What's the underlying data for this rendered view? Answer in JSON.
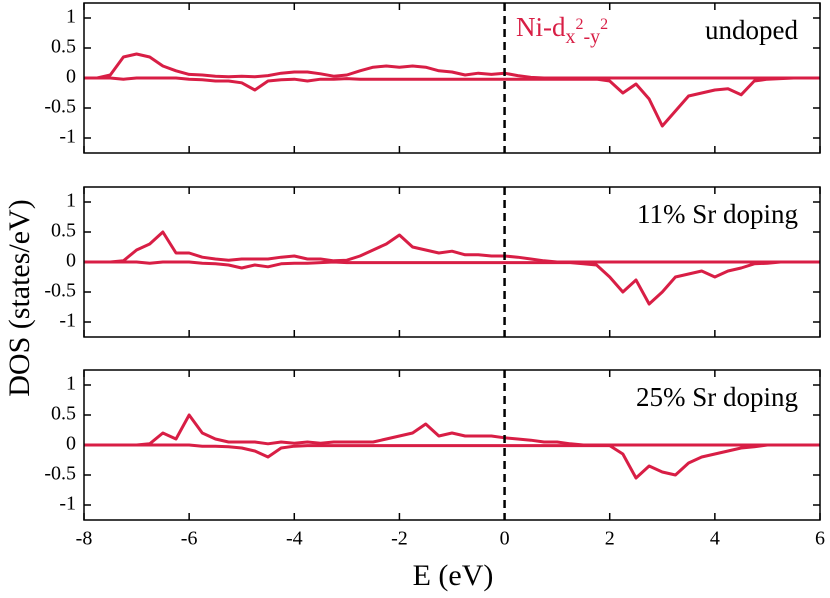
{
  "chart_data": [
    {
      "type": "line",
      "label": "undoped",
      "annotation": {
        "text": "Ni-d",
        "sub1": "x",
        "sup1": "2",
        "sub2": "-y",
        "sup2": "2"
      },
      "x": [
        -8,
        -7.75,
        -7.5,
        -7.25,
        -7,
        -6.75,
        -6.5,
        -6.25,
        -6,
        -5.75,
        -5.5,
        -5.25,
        -5,
        -4.75,
        -4.5,
        -4.25,
        -4,
        -3.75,
        -3.5,
        -3.25,
        -3,
        -2.75,
        -2.5,
        -2.25,
        -2,
        -1.75,
        -1.5,
        -1.25,
        -1,
        -0.75,
        -0.5,
        -0.25,
        0,
        0.25,
        0.5,
        0.75,
        1,
        1.25,
        1.5,
        1.75,
        2,
        2.25,
        2.5,
        2.75,
        3,
        3.25,
        3.5,
        3.75,
        4,
        4.25,
        4.5,
        4.75,
        5,
        5.25,
        5.5,
        5.75,
        6
      ],
      "series": [
        {
          "color": "#d81e45",
          "values": [
            0,
            0,
            0.05,
            0.35,
            0.4,
            0.35,
            0.2,
            0.12,
            0.06,
            0.05,
            0.03,
            0.02,
            0.03,
            0.02,
            0.04,
            0.08,
            0.1,
            0.1,
            0.07,
            0.03,
            0.05,
            0.12,
            0.18,
            0.2,
            0.18,
            0.2,
            0.18,
            0.12,
            0.1,
            0.05,
            0.08,
            0.06,
            0.08,
            0.04,
            0.01,
            0,
            0,
            0,
            0,
            0,
            0,
            0,
            0,
            0,
            0,
            0,
            0,
            0,
            0,
            0,
            0,
            0,
            0,
            0,
            0,
            0,
            0
          ]
        },
        {
          "color": "#d81e45",
          "values": [
            0,
            0,
            0,
            -0.02,
            0,
            0,
            0,
            0,
            -0.02,
            -0.03,
            -0.05,
            -0.05,
            -0.08,
            -0.2,
            -0.05,
            -0.03,
            -0.02,
            -0.05,
            -0.02,
            -0.02,
            -0.01,
            -0.02,
            -0.02,
            -0.02,
            -0.02,
            -0.02,
            -0.02,
            -0.02,
            -0.02,
            -0.02,
            -0.02,
            -0.02,
            -0.02,
            -0.02,
            -0.02,
            -0.02,
            -0.02,
            -0.02,
            -0.02,
            -0.02,
            -0.05,
            -0.25,
            -0.1,
            -0.35,
            -0.8,
            -0.55,
            -0.3,
            -0.25,
            -0.2,
            -0.18,
            -0.28,
            -0.05,
            -0.02,
            -0.01,
            0,
            0,
            0
          ]
        }
      ],
      "xlim": [
        -8,
        6
      ],
      "xticks": [
        -8,
        -6,
        -4,
        -2,
        0,
        2,
        4,
        6
      ],
      "xtick_labels": false,
      "ylim": [
        -1.25,
        1.25
      ],
      "yticks": [
        -1,
        -0.5,
        0,
        0.5,
        1
      ],
      "vline": 0
    },
    {
      "type": "line",
      "label": "11% Sr doping",
      "ylabel": "DOS (states/eV)",
      "x": [
        -8,
        -7.75,
        -7.5,
        -7.25,
        -7,
        -6.75,
        -6.5,
        -6.25,
        -6,
        -5.75,
        -5.5,
        -5.25,
        -5,
        -4.75,
        -4.5,
        -4.25,
        -4,
        -3.75,
        -3.5,
        -3.25,
        -3,
        -2.75,
        -2.5,
        -2.25,
        -2,
        -1.75,
        -1.5,
        -1.25,
        -1,
        -0.75,
        -0.5,
        -0.25,
        0,
        0.25,
        0.5,
        0.75,
        1,
        1.25,
        1.5,
        1.75,
        2,
        2.25,
        2.5,
        2.75,
        3,
        3.25,
        3.5,
        3.75,
        4,
        4.25,
        4.5,
        4.75,
        5,
        5.25,
        5.5,
        5.75,
        6
      ],
      "series": [
        {
          "color": "#d81e45",
          "values": [
            0,
            0,
            0,
            0.02,
            0.2,
            0.3,
            0.5,
            0.15,
            0.15,
            0.08,
            0.05,
            0.03,
            0.05,
            0.05,
            0.05,
            0.08,
            0.1,
            0.05,
            0.05,
            0.02,
            0.03,
            0.1,
            0.2,
            0.3,
            0.45,
            0.25,
            0.2,
            0.15,
            0.18,
            0.12,
            0.12,
            0.1,
            0.1,
            0.08,
            0.05,
            0.02,
            0,
            0,
            0,
            0,
            0,
            0,
            0,
            0,
            0,
            0,
            0,
            0,
            0,
            0,
            0,
            0,
            0,
            0,
            0,
            0,
            0
          ]
        },
        {
          "color": "#d81e45",
          "values": [
            0,
            0,
            0,
            0,
            0,
            -0.02,
            0,
            0,
            0,
            -0.02,
            -0.03,
            -0.05,
            -0.1,
            -0.05,
            -0.08,
            -0.03,
            -0.02,
            -0.02,
            -0.01,
            0,
            -0.01,
            -0.01,
            -0.01,
            -0.01,
            -0.01,
            -0.01,
            -0.01,
            -0.01,
            -0.01,
            -0.01,
            -0.01,
            -0.01,
            -0.01,
            -0.01,
            -0.01,
            -0.01,
            -0.01,
            -0.01,
            -0.03,
            -0.05,
            -0.25,
            -0.5,
            -0.3,
            -0.7,
            -0.5,
            -0.25,
            -0.2,
            -0.15,
            -0.25,
            -0.15,
            -0.1,
            -0.03,
            -0.02,
            0,
            0,
            0,
            0
          ]
        }
      ],
      "xlim": [
        -8,
        6
      ],
      "xticks": [
        -8,
        -6,
        -4,
        -2,
        0,
        2,
        4,
        6
      ],
      "xtick_labels": false,
      "ylim": [
        -1.25,
        1.25
      ],
      "yticks": [
        -1,
        -0.5,
        0,
        0.5,
        1
      ],
      "vline": 0
    },
    {
      "type": "line",
      "label": "25% Sr doping",
      "xlabel": "E (eV)",
      "x": [
        -8,
        -7.75,
        -7.5,
        -7.25,
        -7,
        -6.75,
        -6.5,
        -6.25,
        -6,
        -5.75,
        -5.5,
        -5.25,
        -5,
        -4.75,
        -4.5,
        -4.25,
        -4,
        -3.75,
        -3.5,
        -3.25,
        -3,
        -2.75,
        -2.5,
        -2.25,
        -2,
        -1.75,
        -1.5,
        -1.25,
        -1,
        -0.75,
        -0.5,
        -0.25,
        0,
        0.25,
        0.5,
        0.75,
        1,
        1.25,
        1.5,
        1.75,
        2,
        2.25,
        2.5,
        2.75,
        3,
        3.25,
        3.5,
        3.75,
        4,
        4.25,
        4.5,
        4.75,
        5,
        5.25,
        5.5,
        5.75,
        6
      ],
      "series": [
        {
          "color": "#d81e45",
          "values": [
            0,
            0,
            0,
            0,
            0,
            0.02,
            0.2,
            0.1,
            0.5,
            0.2,
            0.1,
            0.05,
            0.05,
            0.05,
            0.02,
            0.05,
            0.03,
            0.05,
            0.03,
            0.05,
            0.05,
            0.05,
            0.05,
            0.1,
            0.15,
            0.2,
            0.35,
            0.15,
            0.2,
            0.15,
            0.15,
            0.15,
            0.12,
            0.1,
            0.08,
            0.05,
            0.05,
            0.02,
            0,
            0,
            0,
            0,
            0,
            0,
            0,
            0,
            0,
            0,
            0,
            0,
            0,
            0,
            0,
            0,
            0,
            0,
            0
          ]
        },
        {
          "color": "#d81e45",
          "values": [
            0,
            0,
            0,
            0,
            0,
            0,
            0,
            0,
            0,
            -0.02,
            -0.02,
            -0.03,
            -0.05,
            -0.1,
            -0.2,
            -0.05,
            -0.02,
            -0.01,
            -0.01,
            -0.01,
            -0.01,
            -0.01,
            -0.01,
            -0.01,
            -0.01,
            -0.01,
            -0.01,
            -0.01,
            -0.01,
            -0.01,
            -0.01,
            -0.01,
            -0.01,
            -0.01,
            -0.01,
            -0.01,
            -0.01,
            -0.01,
            -0.01,
            -0.01,
            -0.01,
            -0.15,
            -0.55,
            -0.35,
            -0.45,
            -0.5,
            -0.3,
            -0.2,
            -0.15,
            -0.1,
            -0.05,
            -0.03,
            0,
            0,
            0,
            0,
            0
          ]
        }
      ],
      "xlim": [
        -8,
        6
      ],
      "xticks": [
        -8,
        -6,
        -4,
        -2,
        0,
        2,
        4,
        6
      ],
      "xtick_labels": true,
      "ylim": [
        -1.25,
        1.25
      ],
      "yticks": [
        -1,
        -0.5,
        0,
        0.5,
        1
      ],
      "vline": 0
    }
  ]
}
